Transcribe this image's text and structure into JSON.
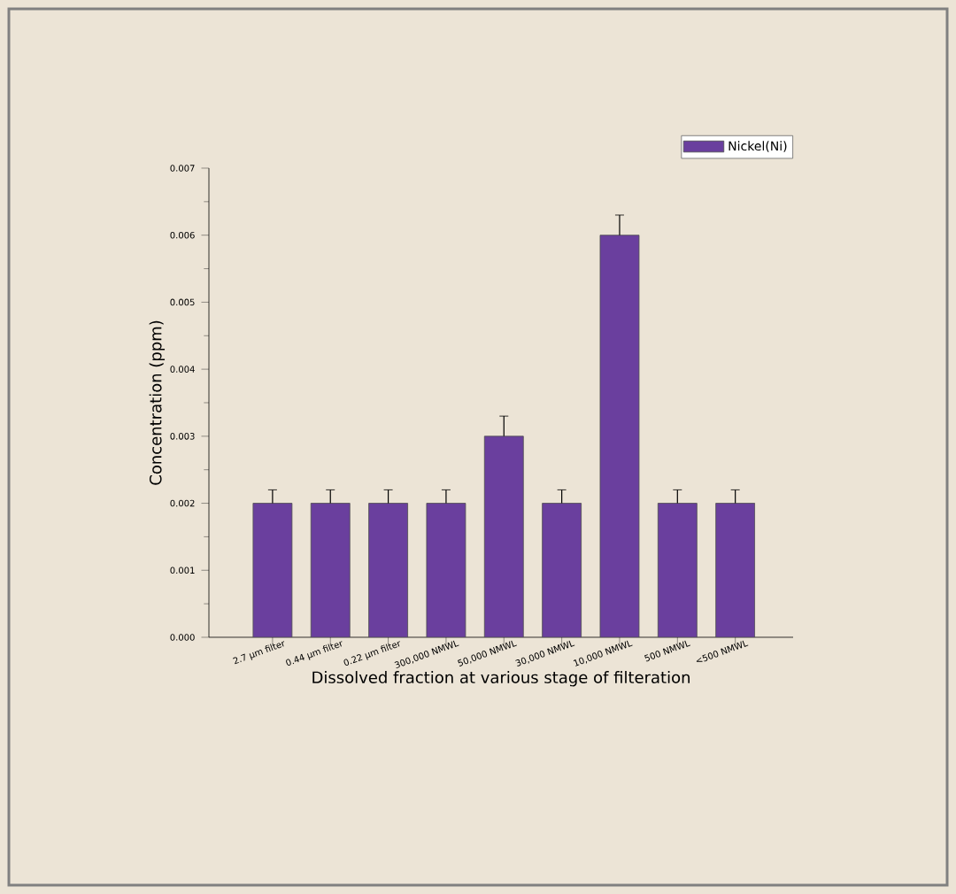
{
  "chart_data": {
    "type": "bar",
    "xlabel": "Dissolved fraction at various stage of filteration",
    "ylabel": "Concentration (ppm)",
    "categories": [
      "2.7 μm filter",
      "0.44 μm filter",
      "0.22 μm filter",
      "300,000 NMWL",
      "50,000 NMWL",
      "30,000 NMWL",
      "10,000 NMWL",
      "500 NMWL",
      "<500 NMWL"
    ],
    "series": [
      {
        "name": "Nickel(Ni)",
        "color": "#6a3f9e",
        "values": [
          0.002,
          0.002,
          0.002,
          0.002,
          0.003,
          0.002,
          0.006,
          0.002,
          0.002
        ],
        "errors": [
          0.0002,
          0.0002,
          0.0002,
          0.0002,
          0.0003,
          0.0002,
          0.0003,
          0.0002,
          0.0002
        ]
      }
    ],
    "ylim": [
      0,
      0.007
    ],
    "yticks": [
      {
        "value": 0,
        "label": "0.000"
      },
      {
        "value": 0.001,
        "label": "0.001"
      },
      {
        "value": 0.002,
        "label": "0.002"
      },
      {
        "value": 0.003,
        "label": "0.003"
      },
      {
        "value": 0.004,
        "label": "0.004"
      },
      {
        "value": 0.005,
        "label": "0.005"
      },
      {
        "value": 0.006,
        "label": "0.006"
      },
      {
        "value": 0.007,
        "label": "0.007"
      }
    ],
    "legend": "top right"
  }
}
